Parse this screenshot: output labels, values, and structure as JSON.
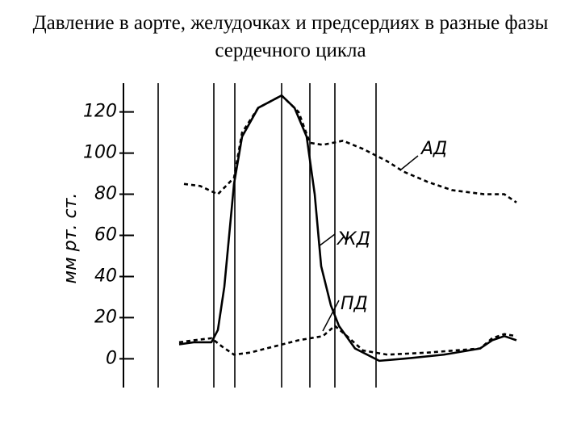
{
  "chart_data": {
    "type": "line",
    "title": "Давление в аорте, желудочках и предсердиях в разные фазы сердечного цикла",
    "ylabel": "мм рт. ст.",
    "xlim": [
      0,
      490
    ],
    "ylim": [
      -14,
      134
    ],
    "yticks": [
      0,
      20,
      40,
      60,
      80,
      100,
      120
    ],
    "phase_lines": [
      43,
      112,
      138,
      196,
      231,
      262,
      313
    ],
    "series": [
      {
        "name": "АД",
        "color": "#000000",
        "dash": true,
        "x": [
          75,
          95,
          117,
          127,
          137,
          147,
          167,
          196,
          217,
          231,
          247,
          272,
          297,
          327,
          347,
          377,
          407,
          447,
          472,
          487
        ],
        "values": [
          85,
          84,
          80,
          84,
          88,
          110,
          122,
          128,
          120,
          105,
          104,
          106,
          102,
          96,
          91,
          86,
          82,
          80,
          80,
          76
        ]
      },
      {
        "name": "ЖД",
        "color": "#000000",
        "dash": false,
        "x": [
          69,
          87,
          109,
          117,
          125,
          137,
          147,
          167,
          196,
          212,
          227,
          237,
          245,
          257,
          267,
          287,
          317,
          347,
          397,
          442,
          457,
          472,
          487
        ],
        "values": [
          7,
          8,
          8,
          14,
          35,
          85,
          108,
          122,
          128,
          122,
          108,
          80,
          45,
          26,
          16,
          5,
          -1,
          0,
          2,
          5,
          9,
          11,
          9
        ]
      },
      {
        "name": "ПД",
        "color": "#000000",
        "dash": true,
        "x": [
          69,
          87,
          109,
          122,
          137,
          157,
          187,
          217,
          247,
          262,
          277,
          297,
          327,
          377,
          442,
          457,
          472,
          487
        ],
        "values": [
          8,
          9,
          10,
          6,
          2,
          3,
          6,
          9,
          11,
          16,
          11,
          4,
          2,
          3,
          5,
          10,
          12,
          11
        ]
      }
    ]
  }
}
